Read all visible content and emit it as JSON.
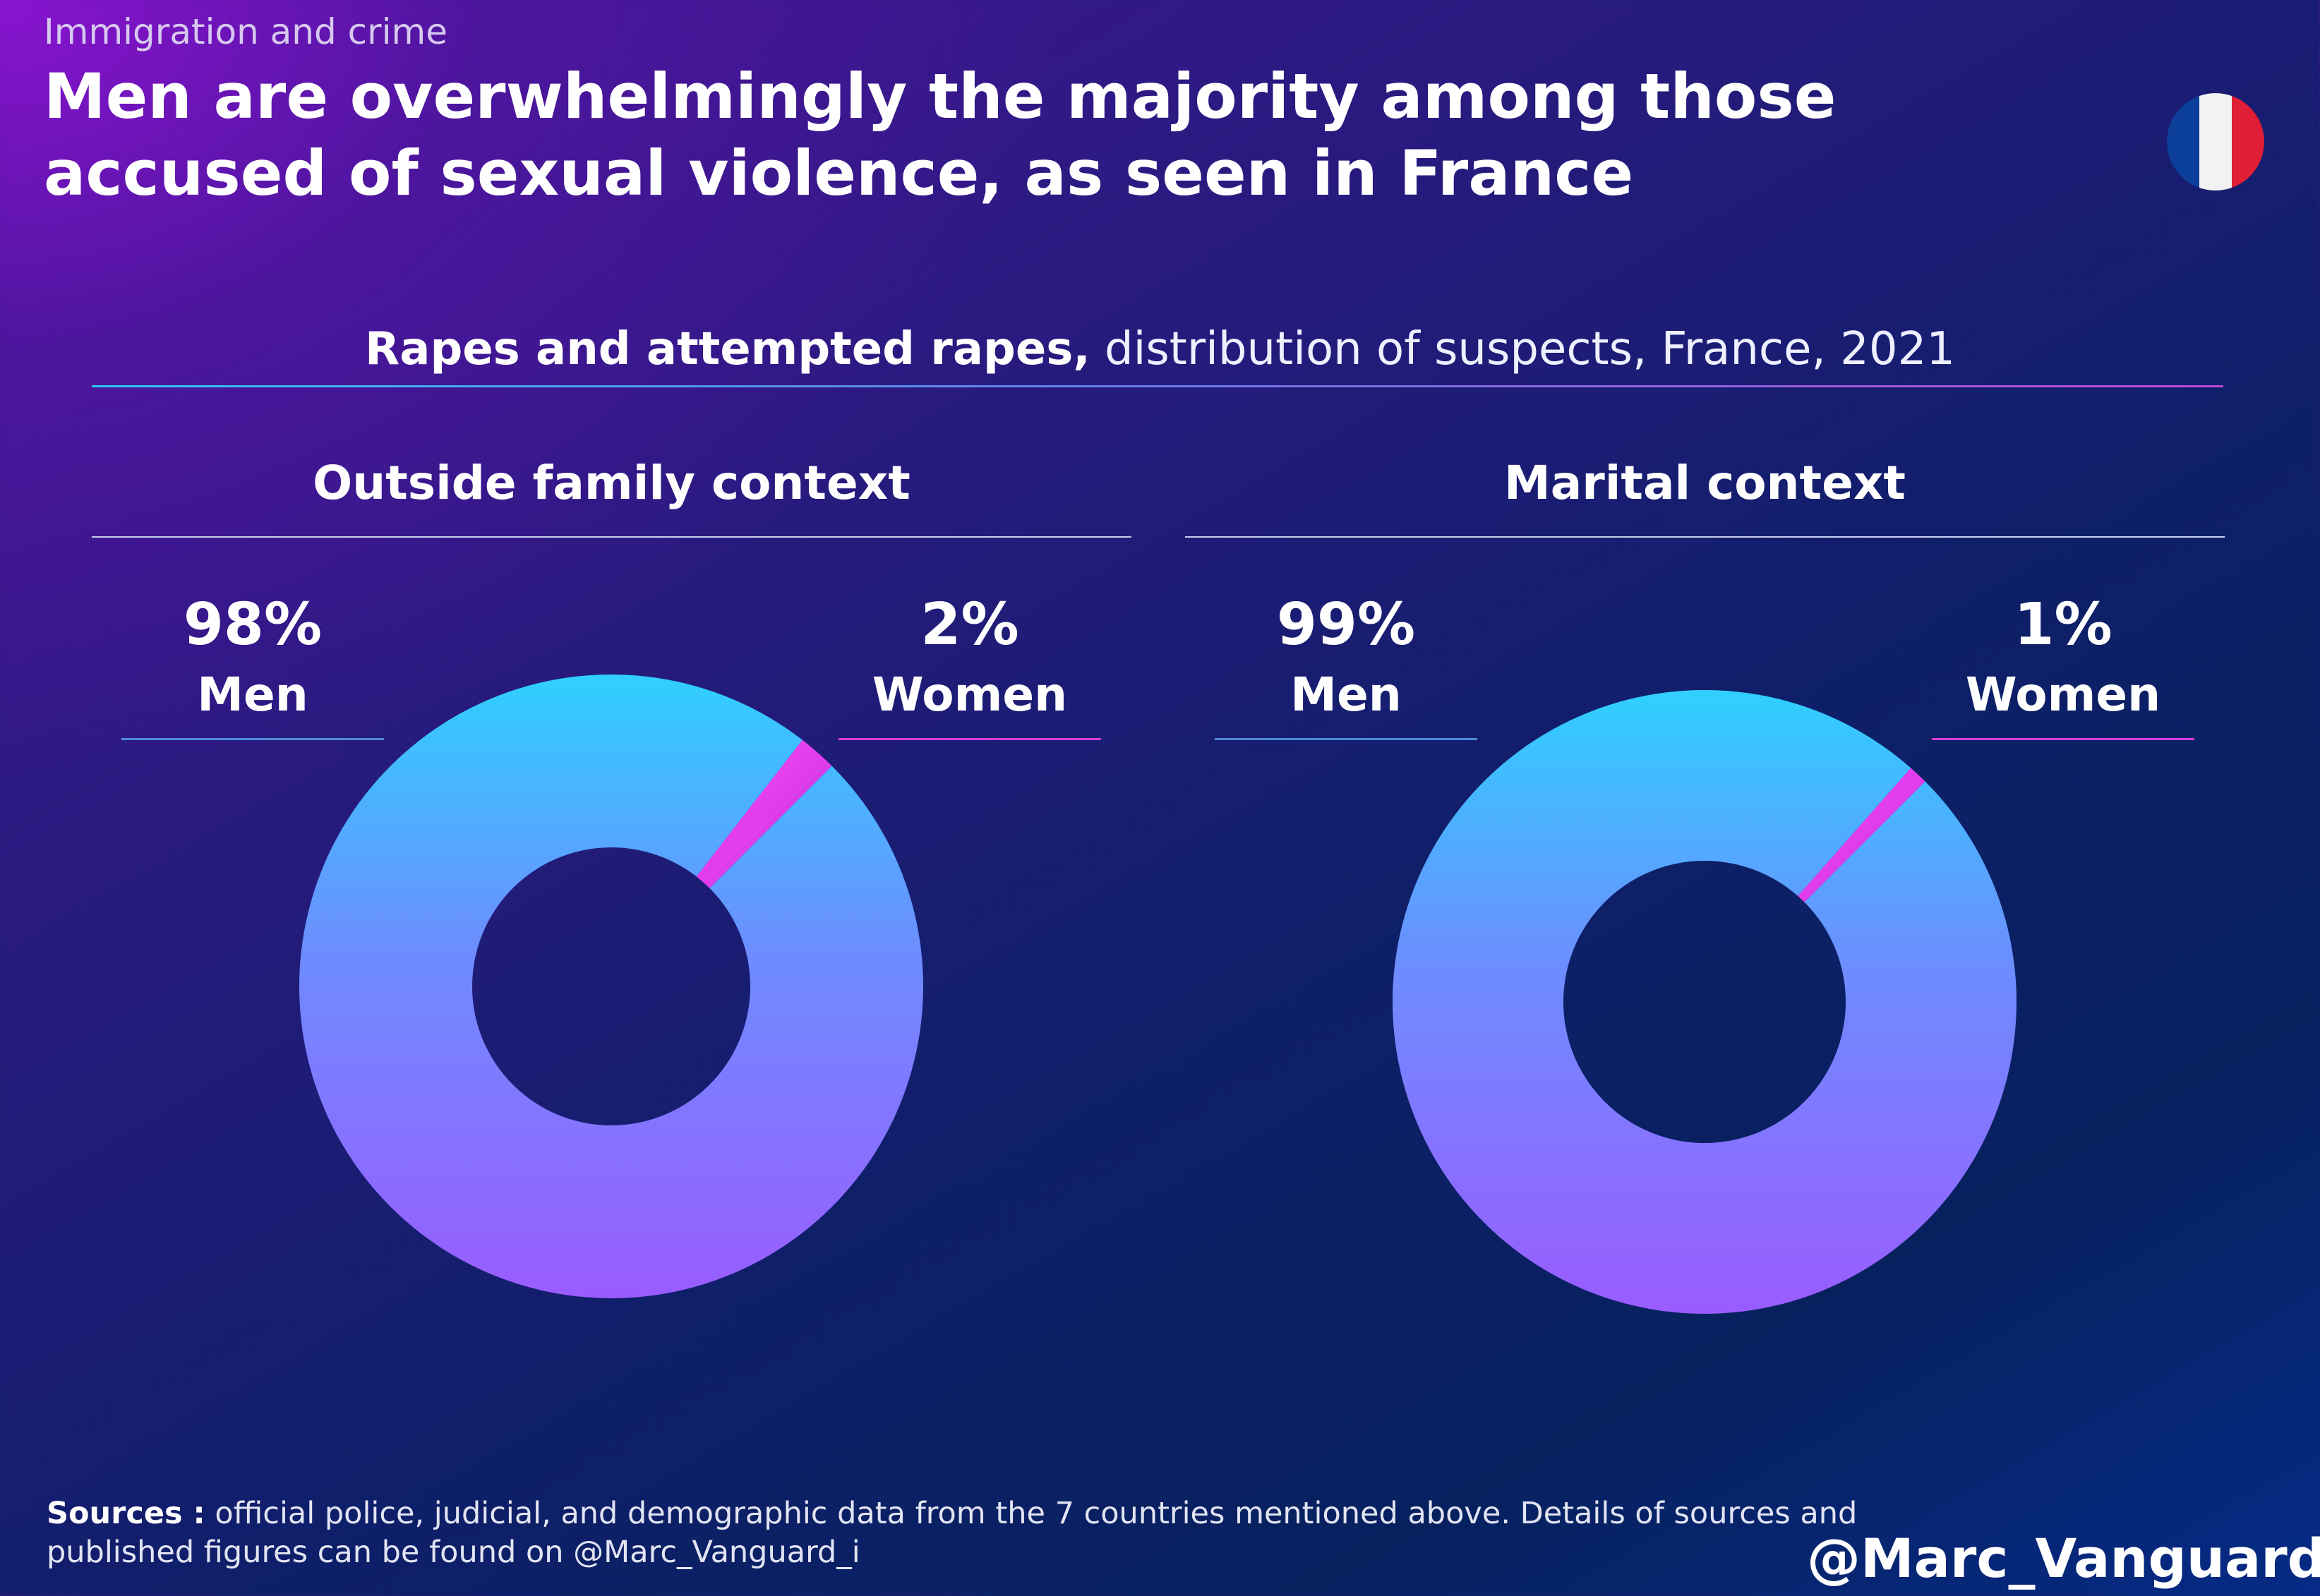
{
  "header": {
    "kicker": "Immigration and crime",
    "title": "Men are overwhelmingly the majority among those accused of sexual violence, as seen in France",
    "flag_icon": "france-flag-icon",
    "flag_colors": [
      "#0b3f9a",
      "#f2f2f2",
      "#e01e35"
    ]
  },
  "subtitle": {
    "bold": "Rapes and attempted rapes,",
    "rest": "distribution of suspects, France, 2021"
  },
  "chart_data": [
    {
      "type": "pie",
      "title": "Outside family context",
      "categories": [
        "Men",
        "Women"
      ],
      "values": [
        98,
        2
      ],
      "value_labels": [
        "98%",
        "2%"
      ],
      "colors": {
        "Men": "#5f8cff",
        "Women": "#e23cf0"
      }
    },
    {
      "type": "pie",
      "title": "Marital context",
      "categories": [
        "Men",
        "Women"
      ],
      "values": [
        99,
        1
      ],
      "value_labels": [
        "99%",
        "1%"
      ],
      "colors": {
        "Men": "#5f8cff",
        "Women": "#e23cf0"
      }
    }
  ],
  "footer": {
    "sources_label": "Sources :",
    "sources_text": "official police, judicial, and demographic data from the 7 countries mentioned above. Details of sources and published figures can be found on @Marc_Vanguard_i",
    "handle": "@Marc_Vanguard_i"
  }
}
